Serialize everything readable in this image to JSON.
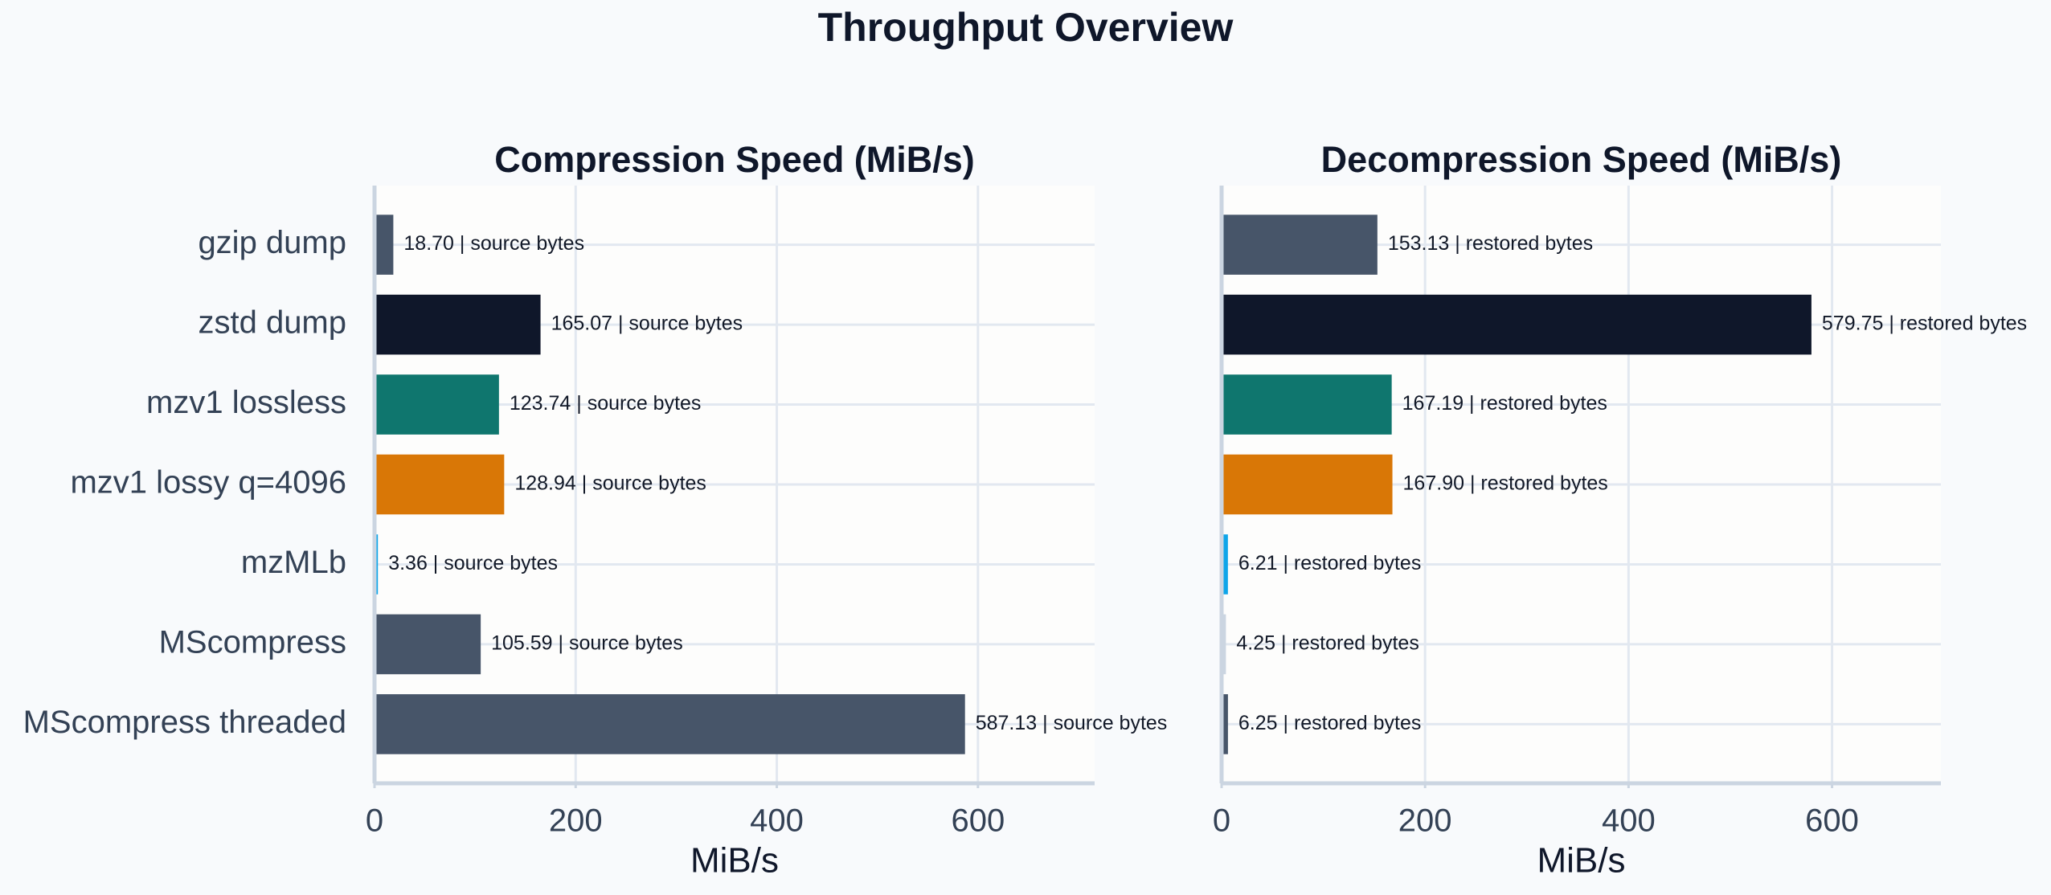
{
  "title": "Throughput Overview",
  "chart_data": [
    {
      "type": "bar",
      "orientation": "horizontal",
      "title": "Compression Speed (MiB/s)",
      "xlabel": "MiB/s",
      "categories": [
        "gzip dump",
        "zstd dump",
        "mzv1 lossless",
        "mzv1 lossy q=4096",
        "mzMLb",
        "MScompress",
        "MScompress threaded"
      ],
      "values": [
        18.7,
        165.07,
        123.74,
        128.94,
        3.36,
        105.59,
        587.13
      ],
      "value_labels": [
        "18.70  |  source bytes",
        "165.07  |  source bytes",
        "123.74  |  source bytes",
        "128.94  |  source bytes",
        "3.36  |  source bytes",
        "105.59  |  source bytes",
        "587.13  |  source bytes"
      ],
      "colors": [
        "#475569",
        "#0f172a",
        "#0f766e",
        "#d97706",
        "#0ea5e9",
        "#475569",
        "#475569"
      ],
      "xlim": [
        0,
        716
      ],
      "xticks": [
        0,
        200,
        400,
        600
      ],
      "grid": true
    },
    {
      "type": "bar",
      "orientation": "horizontal",
      "title": "Decompression Speed (MiB/s)",
      "xlabel": "MiB/s",
      "values": [
        153.13,
        579.75,
        167.19,
        167.9,
        6.21,
        4.25,
        6.25
      ],
      "value_labels": [
        "153.13  |  restored bytes",
        "579.75  |  restored bytes",
        "167.19  |  restored bytes",
        "167.90  |  restored bytes",
        "6.21  |  restored bytes",
        "4.25  |  restored bytes",
        "6.25  |  restored bytes"
      ],
      "colors": [
        "#475569",
        "#0f172a",
        "#0f766e",
        "#d97706",
        "#0ea5e9",
        "#cbd5e1",
        "#475569"
      ],
      "xlim": [
        0,
        707
      ],
      "xticks": [
        0,
        200,
        400,
        600
      ],
      "grid": true
    }
  ]
}
